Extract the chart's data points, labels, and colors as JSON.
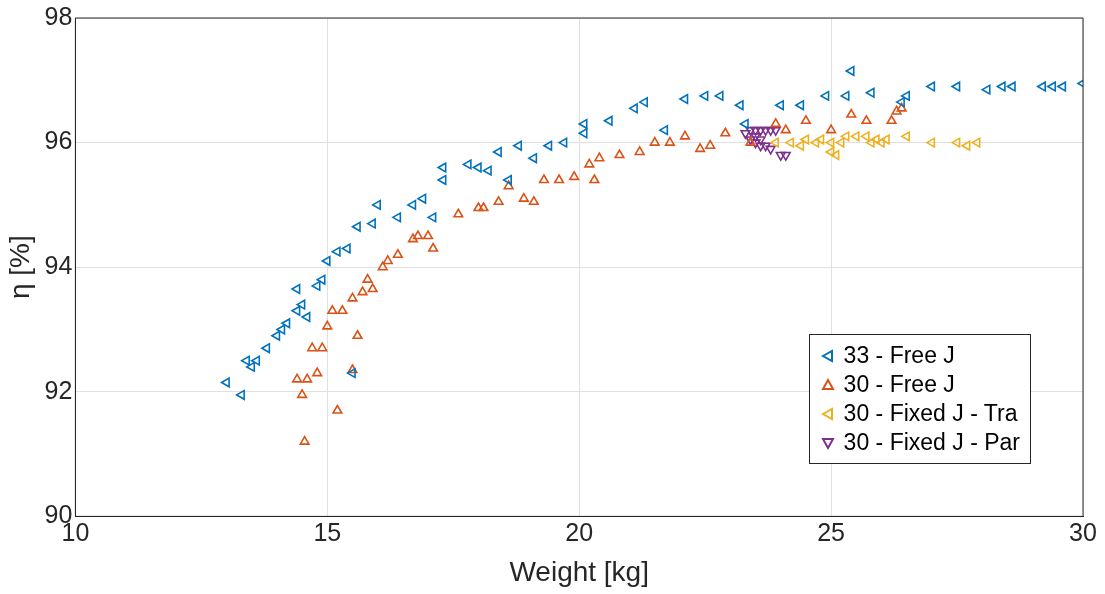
{
  "chart_data": {
    "type": "scatter",
    "xlabel": "Weight [kg]",
    "ylabel": "η [%]",
    "xlim": [
      10,
      30
    ],
    "ylim": [
      90,
      98
    ],
    "xticks": [
      10,
      15,
      20,
      25,
      30
    ],
    "yticks": [
      90,
      92,
      94,
      96,
      98
    ],
    "grid": true,
    "legend": "bottom right",
    "series": [
      {
        "name": "33 - Free J",
        "color": "#0072bd",
        "marker": "triangle-left",
        "x": [
          13.0,
          13.3,
          13.4,
          13.5,
          13.6,
          13.8,
          14.0,
          14.1,
          14.2,
          14.4,
          14.4,
          14.5,
          14.6,
          14.8,
          14.9,
          15.0,
          15.2,
          15.4,
          15.6,
          15.5,
          15.9,
          16.0,
          16.4,
          16.7,
          16.9,
          17.1,
          17.3,
          17.3,
          17.8,
          18.0,
          18.2,
          18.4,
          18.6,
          18.8,
          19.1,
          19.4,
          19.7,
          20.1,
          20.1,
          20.6,
          21.1,
          21.3,
          21.7,
          22.1,
          22.5,
          22.8,
          23.2,
          23.3,
          24.0,
          24.4,
          24.9,
          25.3,
          25.4,
          25.8,
          26.4,
          26.5,
          27.0,
          27.5,
          28.1,
          28.4,
          28.6,
          29.2,
          29.4,
          29.6,
          30.0
        ],
        "values": [
          92.15,
          91.95,
          92.5,
          92.4,
          92.5,
          92.7,
          92.9,
          93.0,
          93.1,
          93.3,
          93.65,
          93.4,
          93.2,
          93.7,
          93.8,
          94.1,
          94.25,
          94.3,
          94.65,
          92.3,
          94.7,
          95.0,
          94.8,
          95.0,
          95.1,
          94.8,
          95.4,
          95.6,
          95.65,
          95.6,
          95.55,
          95.85,
          95.4,
          95.95,
          95.75,
          95.95,
          96.0,
          96.15,
          96.3,
          96.35,
          96.55,
          96.65,
          96.2,
          96.7,
          96.75,
          96.75,
          96.6,
          96.3,
          96.6,
          96.6,
          96.75,
          96.75,
          97.15,
          96.8,
          96.65,
          96.75,
          96.9,
          96.9,
          96.85,
          96.9,
          96.9,
          96.9,
          96.9,
          96.9,
          96.95
        ]
      },
      {
        "name": "30 - Free J",
        "color": "#d95319",
        "marker": "triangle",
        "x": [
          14.4,
          14.5,
          14.55,
          14.6,
          14.8,
          14.7,
          14.9,
          15.0,
          15.1,
          15.2,
          15.3,
          15.5,
          15.5,
          15.6,
          15.7,
          15.8,
          15.9,
          16.1,
          16.2,
          16.4,
          16.7,
          16.8,
          17.0,
          17.1,
          17.6,
          18.0,
          18.1,
          18.4,
          18.6,
          18.9,
          19.1,
          19.3,
          19.6,
          19.9,
          20.2,
          20.3,
          20.4,
          20.8,
          21.2,
          21.5,
          21.8,
          22.1,
          22.4,
          22.6,
          22.9,
          23.4,
          23.9,
          24.1,
          24.5,
          25.0,
          25.4,
          25.7,
          26.2,
          26.3,
          26.4
        ],
        "values": [
          92.2,
          91.95,
          91.2,
          92.2,
          92.3,
          92.7,
          92.7,
          93.05,
          93.3,
          91.7,
          93.3,
          93.5,
          92.35,
          92.9,
          93.6,
          93.8,
          93.65,
          94.0,
          94.1,
          94.2,
          94.45,
          94.5,
          94.5,
          94.3,
          94.85,
          94.95,
          94.95,
          95.05,
          95.3,
          95.1,
          95.05,
          95.4,
          95.4,
          95.45,
          95.65,
          95.4,
          95.75,
          95.8,
          95.85,
          96.0,
          96.0,
          96.1,
          95.9,
          95.95,
          96.15,
          96.0,
          96.3,
          96.2,
          96.35,
          96.2,
          96.45,
          96.35,
          96.35,
          96.5,
          96.55
        ]
      },
      {
        "name": "30 - Fixed J - Tra",
        "color": "#edb120",
        "marker": "triangle-left",
        "x": [
          23.9,
          24.2,
          24.4,
          24.5,
          24.7,
          24.8,
          25.0,
          25.0,
          25.1,
          25.2,
          25.3,
          25.5,
          25.7,
          25.8,
          25.9,
          26.0,
          26.1,
          26.5,
          27.0,
          27.5,
          27.7,
          27.9
        ],
        "values": [
          96.0,
          96.0,
          95.95,
          96.05,
          96.0,
          96.05,
          95.85,
          96.0,
          95.8,
          96.0,
          96.1,
          96.1,
          96.1,
          96.0,
          96.05,
          96.0,
          96.05,
          96.1,
          96.0,
          96.0,
          95.95,
          96.0
        ]
      },
      {
        "name": "30 - Fixed J - Par",
        "color": "#7e2f8e",
        "marker": "triangle-down",
        "x": [
          23.3,
          23.4,
          23.5,
          23.6,
          23.7,
          23.8,
          23.9,
          23.4,
          23.5,
          23.6,
          23.7,
          23.8,
          23.5,
          23.6,
          24.0,
          24.1
        ],
        "values": [
          96.15,
          96.2,
          96.2,
          96.2,
          96.2,
          96.2,
          96.2,
          96.05,
          96.0,
          95.95,
          95.95,
          95.9,
          96.1,
          96.05,
          95.8,
          95.8
        ]
      }
    ]
  }
}
